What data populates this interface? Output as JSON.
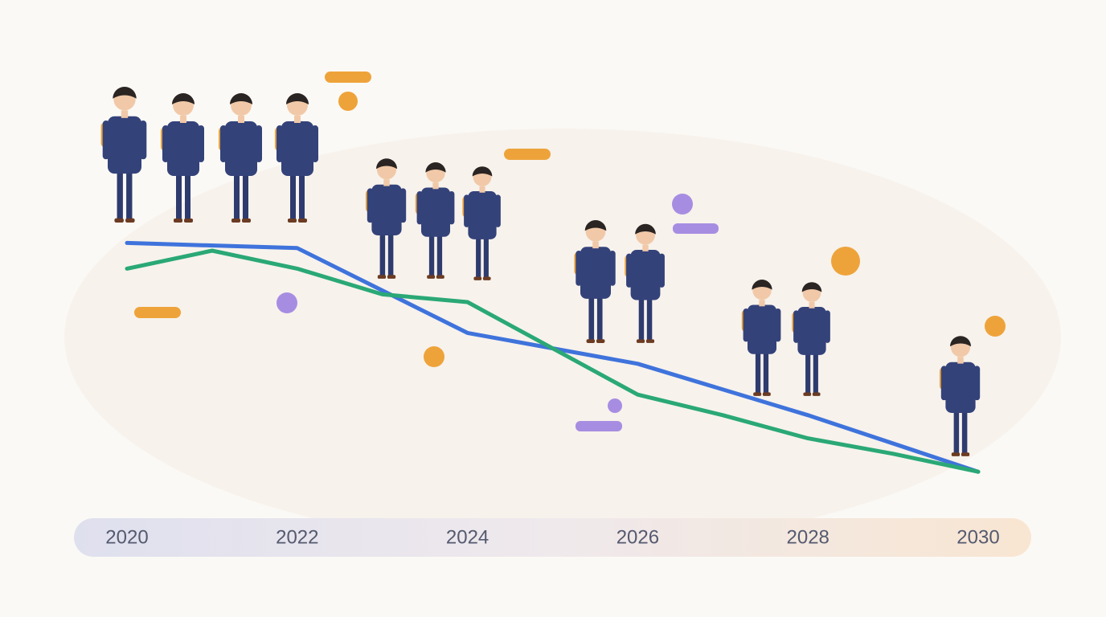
{
  "chart_data": {
    "type": "line",
    "xlim": [
      2020,
      2030
    ],
    "xticks": [
      2020,
      2022,
      2024,
      2026,
      2028,
      2030
    ],
    "ylim": [
      0,
      100
    ],
    "series": [
      {
        "color": "#3f73dc",
        "x": [
          2020,
          2022,
          2024,
          2026,
          2028,
          2030
        ],
        "values": [
          93,
          91,
          58,
          46,
          26,
          4
        ]
      },
      {
        "color": "#2aa876",
        "x": [
          2020,
          2021,
          2022,
          2023,
          2024,
          2025,
          2026,
          2027,
          2028,
          2029,
          2030
        ],
        "values": [
          83,
          90,
          83,
          73,
          70,
          52,
          34,
          26,
          17,
          11,
          4
        ]
      }
    ]
  }
}
